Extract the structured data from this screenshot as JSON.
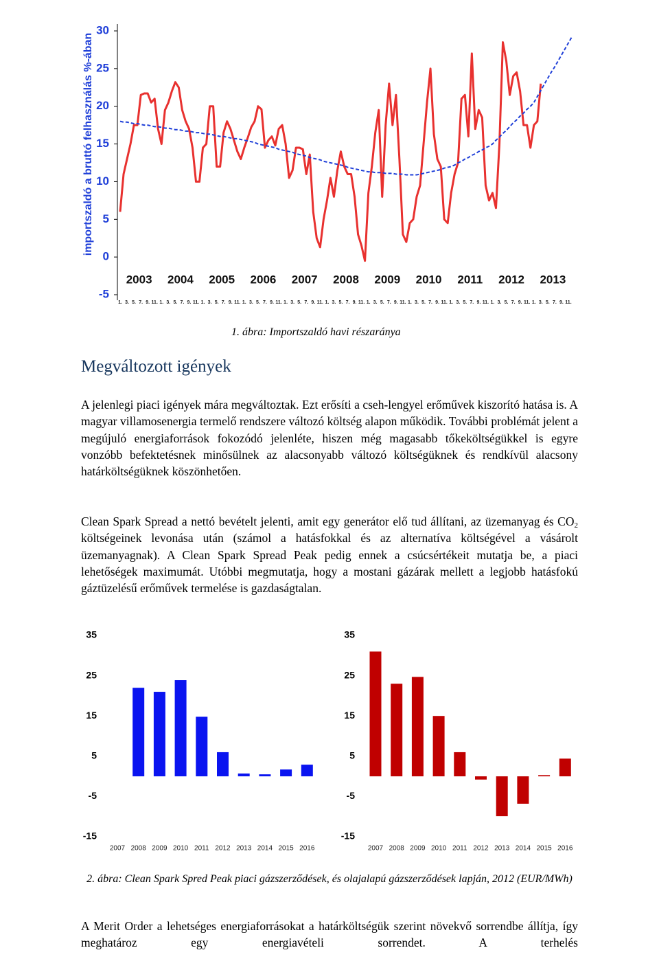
{
  "chart_data": [
    {
      "type": "line",
      "y_label": "importszaldó a bruttó felhasználás %-ában",
      "year_labels": [
        "2003",
        "2004",
        "2005",
        "2006",
        "2007",
        "2008",
        "2009",
        "2010",
        "2011",
        "2012",
        "2013"
      ],
      "categories": [
        "1.",
        null,
        "3.",
        null,
        "5.",
        null,
        "7.",
        null,
        "9.",
        null,
        "11.",
        null,
        "1.",
        null,
        "3.",
        null,
        "5.",
        null,
        "7.",
        null,
        "9.",
        null,
        "11.",
        null,
        "1.",
        null,
        "3.",
        null,
        "5.",
        null,
        "7.",
        null,
        "9.",
        null,
        "11.",
        null,
        "1.",
        null,
        "3.",
        null,
        "5.",
        null,
        "7.",
        null,
        "9.",
        null,
        "11.",
        null,
        "1.",
        null,
        "3.",
        null,
        "5.",
        null,
        "7.",
        null,
        "9.",
        null,
        "11.",
        null,
        "1.",
        null,
        "3.",
        null,
        "5.",
        null,
        "7.",
        null,
        "9.",
        null,
        "11.",
        null,
        "1.",
        null,
        "3.",
        null,
        "5.",
        null,
        "7.",
        null,
        "9.",
        null,
        "11.",
        null,
        "1.",
        null,
        "3.",
        null,
        "5.",
        null,
        "7.",
        null,
        "9.",
        null,
        "11.",
        null,
        "1.",
        null,
        "3.",
        null,
        "5.",
        null,
        "7.",
        null,
        "9.",
        null,
        "11.",
        null,
        "1.",
        null,
        "3.",
        null,
        "5.",
        null,
        "7.",
        null,
        "9.",
        null,
        "11.",
        null,
        "1.",
        null,
        "3.",
        null,
        "5.",
        null,
        "7.",
        null,
        "9.",
        null,
        "11.",
        null
      ],
      "series": [
        {
          "color": "#e8312f",
          "line_style": "solid",
          "values": [
            6,
            11,
            13,
            15,
            17.5,
            17.5,
            21.5,
            21.7,
            21.7,
            20.5,
            21,
            17,
            15,
            19.5,
            20.5,
            22,
            23.2,
            22.5,
            19.5,
            18,
            17,
            14.5,
            10,
            10,
            14.5,
            15,
            20,
            20,
            12,
            12,
            16.5,
            18,
            17,
            15.5,
            14,
            13,
            14.5,
            15.8,
            17.2,
            18,
            20,
            19.6,
            14.5,
            15.5,
            16,
            14.8,
            17,
            17.5,
            15,
            10.5,
            11.5,
            14.5,
            14.5,
            14.3,
            11,
            13.6,
            6,
            2.5,
            1.3,
            5,
            7.5,
            10.5,
            8,
            11.5,
            14,
            12,
            11,
            11,
            8,
            3,
            1.5,
            -0.5,
            8.5,
            12,
            16.5,
            19.5,
            8,
            17.5,
            23,
            17.5,
            21.5,
            13,
            3,
            2,
            4.5,
            5,
            8,
            9.5,
            15,
            20.5,
            25,
            16.3,
            13,
            12,
            5,
            4.5,
            8.5,
            11,
            12.5,
            21,
            21.5,
            16,
            27,
            17,
            19.5,
            18.5,
            9.5,
            7.5,
            8.5,
            6.5,
            15,
            28.5,
            26,
            21.5,
            24,
            24.5,
            22,
            17.5,
            17.5,
            14.5,
            17.5,
            18,
            23,
            null,
            null,
            null,
            null,
            null,
            null,
            null,
            null,
            null
          ]
        },
        {
          "color": "#1f3fd8",
          "line_style": "dashed",
          "values": [
            18.0,
            17.9,
            17.9,
            17.8,
            17.7,
            17.7,
            17.6,
            17.5,
            17.5,
            17.4,
            17.3,
            17.3,
            17.2,
            17.1,
            17.1,
            17.0,
            16.9,
            16.9,
            16.8,
            16.7,
            16.7,
            16.6,
            16.5,
            16.5,
            16.4,
            16.3,
            16.3,
            16.2,
            16.1,
            16.0,
            16.0,
            15.9,
            15.8,
            15.7,
            15.7,
            15.6,
            15.5,
            15.4,
            15.3,
            15.2,
            15.0,
            14.9,
            14.8,
            14.7,
            14.6,
            14.5,
            14.3,
            14.2,
            14.1,
            14.0,
            13.9,
            13.7,
            13.6,
            13.5,
            13.4,
            13.2,
            13.1,
            13.0,
            12.9,
            12.7,
            12.6,
            12.5,
            12.4,
            12.3,
            12.2,
            12.1,
            11.9,
            11.8,
            11.7,
            11.6,
            11.5,
            11.4,
            11.3,
            11.3,
            11.2,
            11.2,
            11.2,
            11.1,
            11.1,
            11.1,
            11.0,
            11.0,
            11.0,
            10.9,
            10.9,
            10.9,
            10.9,
            11.0,
            11.1,
            11.2,
            11.3,
            11.4,
            11.5,
            11.6,
            11.8,
            11.9,
            12.0,
            12.2,
            12.5,
            12.7,
            13.0,
            13.2,
            13.5,
            13.7,
            14.0,
            14.2,
            14.5,
            14.7,
            15.0,
            15.5,
            15.9,
            16.4,
            16.8,
            17.3,
            17.8,
            18.2,
            18.7,
            19.1,
            19.6,
            20.0,
            20.5,
            21.3,
            22.1,
            22.9,
            23.7,
            24.5,
            25.2,
            26.0,
            26.8,
            27.6,
            28.4,
            29.2
          ]
        }
      ],
      "ylim": [
        -5,
        30
      ],
      "yticks": [
        -5,
        0,
        5,
        10,
        15,
        20,
        25,
        30
      ],
      "grid": false
    },
    {
      "type": "bar",
      "categories": [
        "2007",
        "2008",
        "2009",
        "2010",
        "2011",
        "2012",
        "2013",
        "2014",
        "2015",
        "2016"
      ],
      "values": [
        null,
        22,
        21,
        23.9,
        14.8,
        6,
        0.7,
        0.5,
        1.7,
        2.9
      ],
      "color": "#0a14f0",
      "ylim": [
        -15,
        35
      ],
      "yticks": [
        35,
        25,
        15,
        5,
        -5,
        -15
      ],
      "grid": false
    },
    {
      "type": "bar",
      "categories": [
        "2007",
        "2008",
        "2009",
        "2010",
        "2011",
        "2012",
        "2013",
        "2014",
        "2015",
        "2016"
      ],
      "values": [
        31,
        23,
        24.7,
        15,
        6,
        -0.8,
        -9.9,
        -6.8,
        0.3,
        4.4
      ],
      "color": "#c00000",
      "ylim": [
        -15,
        35
      ],
      "yticks": [
        35,
        25,
        15,
        5,
        -5,
        -15
      ],
      "grid": false
    }
  ],
  "document": {
    "caption1": "1. ábra: Importszaldó havi részaránya",
    "heading": "Megváltozott igények",
    "paragraph1": "A jelenlegi piaci igények mára megváltoztak. Ezt erősíti a cseh-lengyel erőművek kiszorító hatása is. A magyar villamosenergia termelő rendszere változó költség alapon működik. További problémát jelent a megújuló energiaforrások fokozódó jelenléte, hiszen még magasabb tőkeköltségükkel is egyre vonzóbb befektetésnek minősülnek az alacsonyabb változó költségüknek és rendkívül alacsony határköltségüknek köszönhetően.",
    "paragraph2": [
      "Clean Spark Spread a nettó bevételt jelenti, amit egy generátor elő tud állítani, az üzemanyag és CO",
      "2",
      " költségeinek levonása után (számol a hatásfokkal és az alternatíva költségével a vásárolt üzemanyagnak). A Clean Spark Spread Peak pedig ennek a csúcsértékeit mutatja be, a piaci lehetőségek maximumát. Utóbbi megmutatja, hogy a mostani gázárak mellett a legjobb hatásfokú gáztüzelésű erőművek termelése is gazdaságtalan."
    ],
    "caption2": "2. ábra: Clean Spark Spred Peak piaci gázszerződések, és olajalapú gázszerződések lapján, 2012 (EUR/MWh)",
    "paragraph3": "A Merit Order a lehetséges energiaforrásokat a határköltségük szerint növekvő sorrendbe állítja, így meghatároz egy energiavételi sorrendet. A terhelés"
  }
}
